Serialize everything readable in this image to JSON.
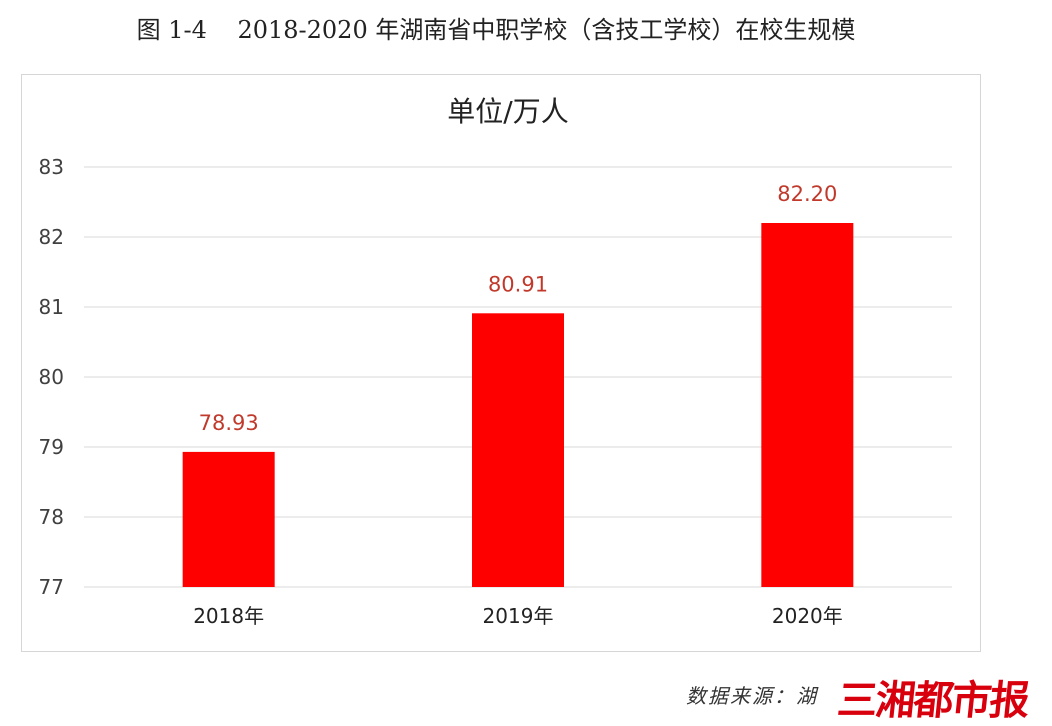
{
  "figure": {
    "caption": "图 1-4    2018-2020 年湖南省中职学校（含技工学校）在校生规模",
    "source_note": "数据来源：湖",
    "watermark": "三湘都市报"
  },
  "colors": {
    "bar": "#ff0000",
    "data_label": "#c0392b",
    "grid": "#d9d9d9",
    "axis_text": "#404040"
  },
  "chart_data": {
    "type": "bar",
    "title": "单位/万人",
    "categories": [
      "2018年",
      "2019年",
      "2020年"
    ],
    "values": [
      78.93,
      80.91,
      82.2
    ],
    "data_labels": [
      "78.93",
      "80.91",
      "82.20"
    ],
    "ylim": [
      77,
      83
    ],
    "yticks": [
      77,
      78,
      79,
      80,
      81,
      82,
      83
    ],
    "grid": true,
    "legend": "none"
  }
}
